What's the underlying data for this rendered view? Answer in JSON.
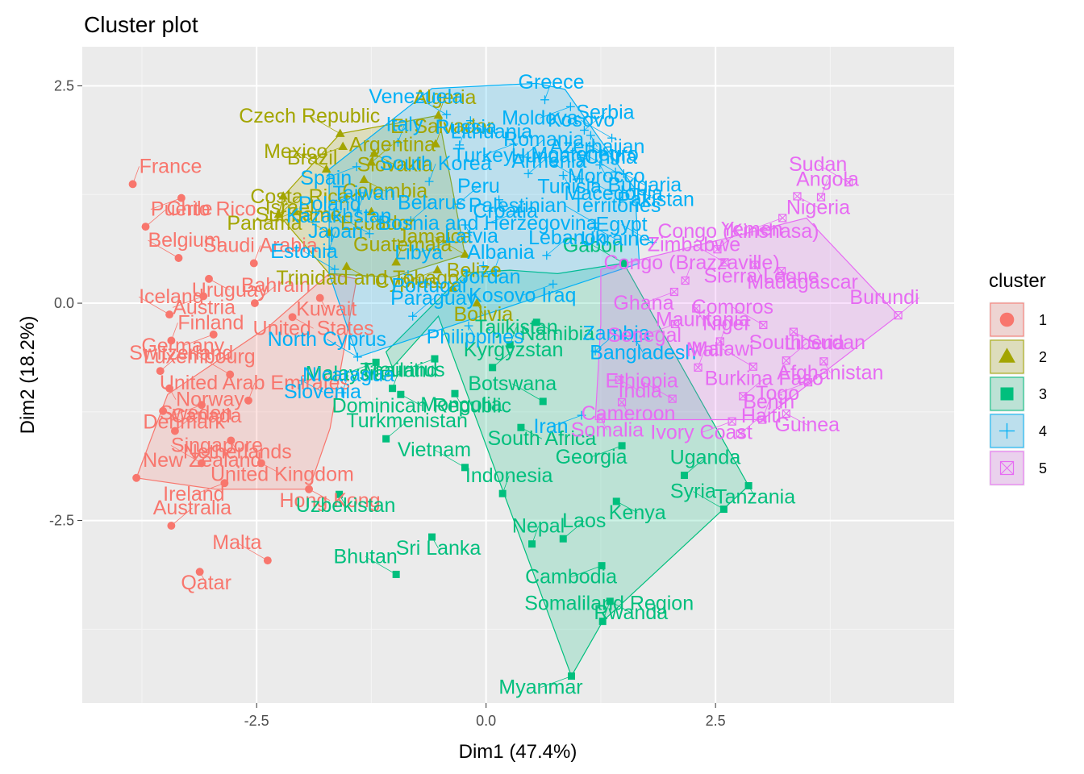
{
  "chart_data": {
    "type": "scatter",
    "title": "Cluster plot",
    "xlabel": "Dim1 (47.4%)",
    "ylabel": "Dim2 (18.2%)",
    "xlim": [
      -4.4,
      5.1
    ],
    "ylim": [
      -4.6,
      2.95
    ],
    "xticks": [
      -2.5,
      0.0,
      2.5
    ],
    "yticks": [
      2.5,
      0.0,
      -2.5
    ],
    "xtick_labels": [
      "-2.5",
      "0.0",
      "2.5"
    ],
    "ytick_labels": [
      "2.5",
      "0.0",
      "-2.5"
    ],
    "grid": true,
    "legend_title": "cluster",
    "legend_position": "right",
    "clusters": [
      {
        "id": "1",
        "color": "#F8766D",
        "shape": "circle",
        "hull": [
          [
            -3.81,
            -2.01
          ],
          [
            -3.47,
            -1.05
          ],
          [
            -2.36,
            -0.26
          ],
          [
            -1.71,
            0.34
          ],
          [
            -1.41,
            0.28
          ],
          [
            -1.7,
            -1.44
          ],
          [
            -1.93,
            -2.14
          ],
          [
            -2.95,
            -2.14
          ]
        ],
        "points": [
          {
            "label": "Belgium",
            "x": -3.35,
            "y": 0.52
          },
          {
            "label": "Uruguay",
            "x": -3.02,
            "y": 0.28
          },
          {
            "label": "Saudi Arabia",
            "x": -2.53,
            "y": 0.46
          },
          {
            "label": "Austria",
            "x": -3.08,
            "y": 0.08
          },
          {
            "label": "Bahrain",
            "x": -2.52,
            "y": 0.0
          },
          {
            "label": "Kuwait",
            "x": -1.81,
            "y": 0.06
          },
          {
            "label": "Iceland",
            "x": -3.45,
            "y": -0.13
          },
          {
            "label": "United States",
            "x": -2.11,
            "y": -0.16
          },
          {
            "label": "Finland",
            "x": -3.43,
            "y": -0.43
          },
          {
            "label": "Germany",
            "x": -2.97,
            "y": -0.36
          },
          {
            "label": "Switzerland",
            "x": -3.55,
            "y": -0.78
          },
          {
            "label": "Norway",
            "x": -3.45,
            "y": -0.98
          },
          {
            "label": "Luxembourg",
            "x": -2.79,
            "y": -0.82
          },
          {
            "label": "Denmark",
            "x": -3.52,
            "y": -1.24
          },
          {
            "label": "United Arab Emirates",
            "x": -2.59,
            "y": -1.12
          },
          {
            "label": "Canada",
            "x": -3.1,
            "y": -1.17
          },
          {
            "label": "Sweden",
            "x": -3.39,
            "y": -1.47
          },
          {
            "label": "Netherlands",
            "x": -2.78,
            "y": -1.58
          },
          {
            "label": "Singapore",
            "x": -3.1,
            "y": -1.84
          },
          {
            "label": "United Kingdom",
            "x": -2.45,
            "y": -1.84
          },
          {
            "label": "New Zealand",
            "x": -3.81,
            "y": -2.01
          },
          {
            "label": "Ireland",
            "x": -2.85,
            "y": -2.07
          },
          {
            "label": "Australia",
            "x": -3.43,
            "y": -2.56
          },
          {
            "label": "Qatar",
            "x": -3.12,
            "y": -3.09
          },
          {
            "label": "Malta",
            "x": -2.38,
            "y": -2.96
          },
          {
            "label": "Hong Kong",
            "x": -1.93,
            "y": -2.14
          },
          {
            "label": "France",
            "x": -3.85,
            "y": 1.37
          },
          {
            "label": "Puerto Rico",
            "x": -3.32,
            "y": 1.21
          },
          {
            "label": "Chile",
            "x": -3.71,
            "y": 0.88
          }
        ]
      },
      {
        "id": "2",
        "color": "#A3A500",
        "shape": "triangle",
        "hull": [
          [
            -2.21,
            1.23
          ],
          [
            -1.59,
            1.95
          ],
          [
            -0.52,
            2.16
          ],
          [
            -0.23,
            0.56
          ],
          [
            -1.02,
            0.3
          ],
          [
            -1.71,
            0.34
          ],
          [
            -2.26,
            1.02
          ]
        ],
        "points": [
          {
            "label": "Czech Republic",
            "x": -1.59,
            "y": 1.95
          },
          {
            "label": "Slovakia",
            "x": -1.22,
            "y": 1.72
          },
          {
            "label": "Algeria",
            "x": -0.52,
            "y": 2.16
          },
          {
            "label": "Brazil",
            "x": -1.56,
            "y": 1.8
          },
          {
            "label": "Argentina",
            "x": -1.25,
            "y": 1.62
          },
          {
            "label": "Israel",
            "x": -2.21,
            "y": 1.23
          },
          {
            "label": "Mexico",
            "x": -1.74,
            "y": 1.54
          },
          {
            "label": "Colombia",
            "x": -1.33,
            "y": 1.42
          },
          {
            "label": "El Salvador",
            "x": -0.55,
            "y": 1.83
          },
          {
            "label": "Panama",
            "x": -2.08,
            "y": 1.05
          },
          {
            "label": "Costa Rica",
            "x": -2.26,
            "y": 1.02
          },
          {
            "label": "Ecuador",
            "x": -1.25,
            "y": 1.05
          },
          {
            "label": "Suriname",
            "x": -1.71,
            "y": 0.81
          },
          {
            "label": "Trinidad and Tobago",
            "x": -1.52,
            "y": 0.42
          },
          {
            "label": "Guatemala",
            "x": -0.98,
            "y": 0.47
          },
          {
            "label": "Cyprus",
            "x": -0.53,
            "y": 0.38
          },
          {
            "label": "Belize",
            "x": -0.36,
            "y": 0.17
          },
          {
            "label": "Bolivia",
            "x": -0.1,
            "y": 0.0
          },
          {
            "label": "Jamaica",
            "x": -0.23,
            "y": 0.56
          }
        ]
      },
      {
        "id": "3",
        "color": "#00BF7D",
        "shape": "square",
        "hull": [
          [
            -1.02,
            -0.74
          ],
          [
            -1.09,
            -0.56
          ],
          [
            -0.23,
            0.35
          ],
          [
            0.26,
            0.38
          ],
          [
            0.78,
            0.34
          ],
          [
            1.5,
            0.46
          ],
          [
            2.86,
            -2.1
          ],
          [
            1.27,
            -3.66
          ],
          [
            0.93,
            -4.29
          ],
          [
            -0.52,
            -0.15
          ]
        ],
        "points": [
          {
            "label": "Gabon",
            "x": 1.5,
            "y": 0.46
          },
          {
            "label": "Namibia",
            "x": 0.55,
            "y": -0.22
          },
          {
            "label": "Tajikistan",
            "x": 0.26,
            "y": -0.48
          },
          {
            "label": "Mauritius",
            "x": -0.56,
            "y": -0.64
          },
          {
            "label": "Kyrgyzstan",
            "x": 0.07,
            "y": -0.74
          },
          {
            "label": "Mongolia",
            "x": -0.34,
            "y": -1.04
          },
          {
            "label": "Botswana",
            "x": 0.62,
            "y": -1.13
          },
          {
            "label": "Dominican Republic",
            "x": -0.93,
            "y": -1.05
          },
          {
            "label": "Thailand",
            "x": -1.02,
            "y": -0.98
          },
          {
            "label": "Malaysia",
            "x": -1.2,
            "y": -0.68
          },
          {
            "label": "Turkmenistan",
            "x": -1.09,
            "y": -1.56
          },
          {
            "label": "Uzbekistan",
            "x": -1.6,
            "y": -2.2
          },
          {
            "label": "Vietnam",
            "x": -0.23,
            "y": -1.89
          },
          {
            "label": "South Africa",
            "x": 0.38,
            "y": -1.43
          },
          {
            "label": "Indonesia",
            "x": 0.18,
            "y": -2.19
          },
          {
            "label": "Georgia",
            "x": 1.48,
            "y": -1.64
          },
          {
            "label": "Uganda",
            "x": 2.16,
            "y": -1.98
          },
          {
            "label": "Tanzania",
            "x": 2.86,
            "y": -2.1
          },
          {
            "label": "Syria",
            "x": 2.59,
            "y": -2.37
          },
          {
            "label": "Kenya",
            "x": 1.42,
            "y": -2.28
          },
          {
            "label": "Nepal",
            "x": 0.5,
            "y": -2.77
          },
          {
            "label": "Cambodia",
            "x": 1.26,
            "y": -3.02
          },
          {
            "label": "Laos",
            "x": 0.84,
            "y": -2.71
          },
          {
            "label": "Sri Lanka",
            "x": -0.59,
            "y": -2.69
          },
          {
            "label": "Bhutan",
            "x": -0.98,
            "y": -3.12
          },
          {
            "label": "Rwanda",
            "x": 1.35,
            "y": -3.43
          },
          {
            "label": "Somaliland Region",
            "x": 1.27,
            "y": -3.66
          },
          {
            "label": "Myanmar",
            "x": 0.93,
            "y": -4.29
          }
        ]
      },
      {
        "id": "4",
        "color": "#00B0F6",
        "shape": "plus",
        "hull": [
          [
            -1.71,
            1.54
          ],
          [
            -0.59,
            2.47
          ],
          [
            0.55,
            2.53
          ],
          [
            0.86,
            2.46
          ],
          [
            1.19,
            1.96
          ],
          [
            1.62,
            1.32
          ],
          [
            1.67,
            0.46
          ],
          [
            -1.4,
            -0.62
          ],
          [
            -1.71,
            0.34
          ]
        ],
        "points": [
          {
            "label": "Venezuela",
            "x": -0.43,
            "y": 2.17
          },
          {
            "label": "Lithuania",
            "x": -0.17,
            "y": 2.1
          },
          {
            "label": "Greece",
            "x": 0.64,
            "y": 2.34
          },
          {
            "label": "Moldova",
            "x": 0.92,
            "y": 2.26
          },
          {
            "label": "Serbia",
            "x": 1.07,
            "y": 1.99
          },
          {
            "label": "Azerbaijan",
            "x": 1.14,
            "y": 1.93
          },
          {
            "label": "Kosovo",
            "x": 1.37,
            "y": 1.9
          },
          {
            "label": "China",
            "x": 1.13,
            "y": 1.81
          },
          {
            "label": "Russia",
            "x": -0.29,
            "y": 1.82
          },
          {
            "label": "Turkey",
            "x": 0.3,
            "y": 1.83
          },
          {
            "label": "Romania",
            "x": 0.4,
            "y": 1.68
          },
          {
            "label": "Morocco",
            "x": 1.24,
            "y": 1.59
          },
          {
            "label": "Montenegro",
            "x": 1.41,
            "y": 1.51
          },
          {
            "label": "Bulgaria",
            "x": 1.5,
            "y": 1.49
          },
          {
            "label": "Italy",
            "x": -0.96,
            "y": 1.85
          },
          {
            "label": "Spain",
            "x": -1.41,
            "y": 1.57
          },
          {
            "label": "Hungary",
            "x": 0.46,
            "y": 1.49
          },
          {
            "label": "Tunisia",
            "x": 0.84,
            "y": 1.47
          },
          {
            "label": "Armenia",
            "x": 1.02,
            "y": 1.43
          },
          {
            "label": "Macedonia",
            "x": 1.16,
            "y": 1.39
          },
          {
            "label": "South Korea",
            "x": -0.62,
            "y": 1.4
          },
          {
            "label": "Poland",
            "x": -1.37,
            "y": 1.27
          },
          {
            "label": "Peru",
            "x": -0.31,
            "y": 1.14
          },
          {
            "label": "Croatia",
            "x": 0.14,
            "y": 1.19
          },
          {
            "label": "Palestinian Territories",
            "x": 1.19,
            "y": 0.92
          },
          {
            "label": "Pakistan",
            "x": 1.62,
            "y": 1.32
          },
          {
            "label": "Taiwan",
            "x": -1.4,
            "y": 1.06
          },
          {
            "label": "Bosnia and Herzegovina",
            "x": 0.35,
            "y": 1.05
          },
          {
            "label": "Belarus",
            "x": -0.82,
            "y": 0.95
          },
          {
            "label": "Latvia",
            "x": -0.23,
            "y": 0.9
          },
          {
            "label": "Kazakhstan",
            "x": -1.27,
            "y": 0.8
          },
          {
            "label": "Ukraine",
            "x": 1.18,
            "y": 0.87
          },
          {
            "label": "Japan",
            "x": -1.71,
            "y": 0.62
          },
          {
            "label": "Libya",
            "x": -0.4,
            "y": 0.71
          },
          {
            "label": "Lebanon",
            "x": 0.66,
            "y": 0.55
          },
          {
            "label": "Jordan",
            "x": -0.03,
            "y": 0.43
          },
          {
            "label": "Estonia",
            "x": -1.65,
            "y": 0.39
          },
          {
            "label": "Portugal",
            "x": -0.85,
            "y": 0.33
          },
          {
            "label": "Albania",
            "x": 0.09,
            "y": 0.38
          },
          {
            "label": "Kosovo Iraq",
            "x": 0.73,
            "y": 0.22
          },
          {
            "label": "Paraguay",
            "x": -0.8,
            "y": -0.15
          },
          {
            "label": "Philippines",
            "x": -0.19,
            "y": -0.26
          },
          {
            "label": "North Cyprus",
            "x": -1.4,
            "y": -0.62
          },
          {
            "label": "Slovenia",
            "x": -2.01,
            "y": -0.89
          },
          {
            "label": "Nicaragua",
            "x": -1.57,
            "y": -1.03
          },
          {
            "label": "Iran",
            "x": 1.04,
            "y": -1.29
          },
          {
            "label": "Zambia",
            "x": 1.19,
            "y": -0.55
          },
          {
            "label": "Bangladesh",
            "x": 1.64,
            "y": -0.44
          },
          {
            "label": "Egypt",
            "x": 1.81,
            "y": 0.7
          }
        ]
      },
      {
        "id": "5",
        "color": "#E76BF3",
        "shape": "square-x",
        "hull": [
          [
            1.25,
            0.39
          ],
          [
            2.59,
            0.74
          ],
          [
            3.49,
            0.98
          ],
          [
            4.49,
            -0.14
          ],
          [
            3.01,
            -1.34
          ],
          [
            1.19,
            -1.34
          ],
          [
            1.25,
            -0.24
          ]
        ],
        "points": [
          {
            "label": "Sudan",
            "x": 3.95,
            "y": 1.39
          },
          {
            "label": "Nigeria",
            "x": 3.39,
            "y": 1.23
          },
          {
            "label": "Angola",
            "x": 3.65,
            "y": 1.22
          },
          {
            "label": "Yemen",
            "x": 3.23,
            "y": 0.98
          },
          {
            "label": "Congo (Kinshasa)",
            "x": 2.52,
            "y": 0.62
          },
          {
            "label": "Sierra Leone",
            "x": 2.93,
            "y": 0.44
          },
          {
            "label": "Zimbabwe",
            "x": 2.6,
            "y": 0.47
          },
          {
            "label": "Madagascar",
            "x": 3.22,
            "y": 0.37
          },
          {
            "label": "Congo (Brazzaville)",
            "x": 2.17,
            "y": 0.26
          },
          {
            "label": "Ghana",
            "x": 2.05,
            "y": 0.13
          },
          {
            "label": "Burundi",
            "x": 4.49,
            "y": -0.14
          },
          {
            "label": "Mauritania",
            "x": 2.29,
            "y": -0.06
          },
          {
            "label": "Comoros",
            "x": 3.02,
            "y": -0.25
          },
          {
            "label": "Liberia",
            "x": 3.35,
            "y": -0.33
          },
          {
            "label": "Niger",
            "x": 2.55,
            "y": -0.44
          },
          {
            "label": "Senegal",
            "x": 2.06,
            "y": -0.24
          },
          {
            "label": "South Sudan",
            "x": 3.27,
            "y": -0.66
          },
          {
            "label": "Afghanistan",
            "x": 3.68,
            "y": -0.67
          },
          {
            "label": "Malawi",
            "x": 2.91,
            "y": -0.73
          },
          {
            "label": "India",
            "x": 1.45,
            "y": -0.88
          },
          {
            "label": "Mali",
            "x": 2.31,
            "y": -0.74
          },
          {
            "label": "Togo",
            "x": 3.51,
            "y": -0.91
          },
          {
            "label": "Burkina Faso",
            "x": 2.8,
            "y": -1.07
          },
          {
            "label": "Cameroon",
            "x": 1.48,
            "y": -1.14
          },
          {
            "label": "Ethiopia",
            "x": 2.03,
            "y": -1.1
          },
          {
            "label": "Guinea",
            "x": 3.27,
            "y": -1.27
          },
          {
            "label": "Benin",
            "x": 3.01,
            "y": -1.34
          },
          {
            "label": "Ivory Coast",
            "x": 2.68,
            "y": -1.36
          },
          {
            "label": "Haiti",
            "x": 2.77,
            "y": -1.5
          },
          {
            "label": "Somalia",
            "x": 1.25,
            "y": -1.33
          }
        ]
      }
    ]
  }
}
